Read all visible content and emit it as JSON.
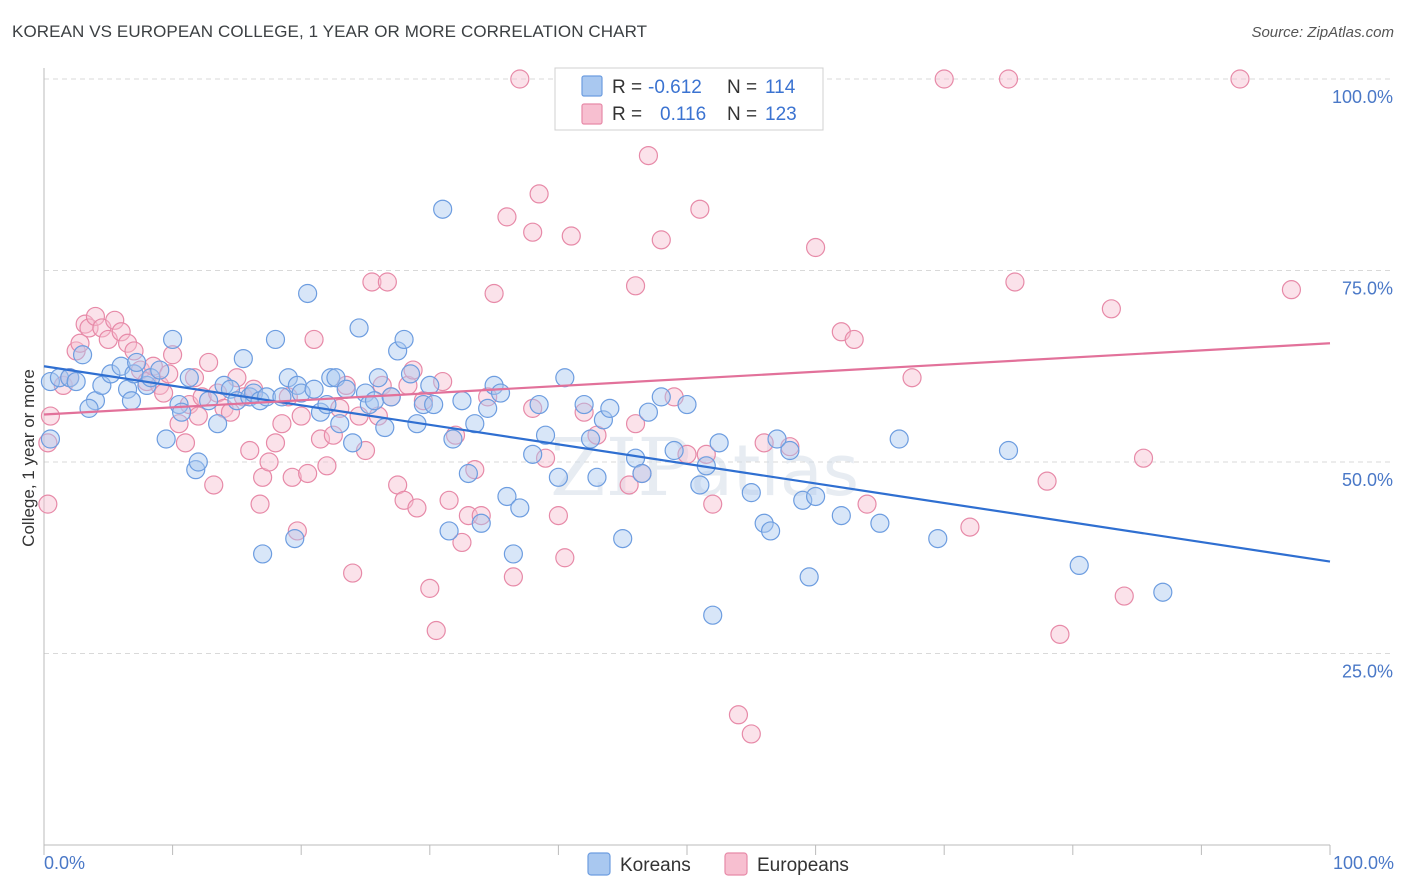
{
  "title": "KOREAN VS EUROPEAN COLLEGE, 1 YEAR OR MORE CORRELATION CHART",
  "source": "Source: ZipAtlas.com",
  "watermark": {
    "zip": "ZIP",
    "atlas": "atlas"
  },
  "legend": {
    "r_label": "R =",
    "n_label": "N =",
    "koreans": {
      "r": "-0.612",
      "n": "114"
    },
    "europeans": {
      "r": "0.116",
      "n": "123"
    }
  },
  "bottom_legend": {
    "koreans": "Koreans",
    "europeans": "Europeans"
  },
  "colors": {
    "koreans_fill": "#a9c8f0",
    "koreans_stroke": "#6d9de0",
    "koreans_line": "#2f6fd1",
    "europeans_fill": "#f7bfd0",
    "europeans_stroke": "#e78aa8",
    "europeans_line": "#e2719a",
    "grid": "#d9d9d9",
    "axis_tick_text": "#4a78c7"
  },
  "chart_data": {
    "type": "scatter",
    "title": "KOREAN VS EUROPEAN COLLEGE, 1 YEAR OR MORE CORRELATION CHART",
    "xlabel": "",
    "ylabel": "College, 1 year or more",
    "xlim": [
      0,
      100
    ],
    "ylim": [
      0,
      105
    ],
    "x_tick_labels": [
      "0.0%",
      "100.0%"
    ],
    "y_ticks": [
      25,
      50,
      75,
      100
    ],
    "y_tick_labels": [
      "25.0%",
      "50.0%",
      "75.0%",
      "100.0%"
    ],
    "grid": true,
    "legend_position": "top-center",
    "series": [
      {
        "name": "Koreans",
        "trend": {
          "x": [
            0,
            100
          ],
          "y": [
            62.5,
            37.0
          ]
        },
        "points": [
          [
            0.5,
            60.5
          ],
          [
            0.5,
            53.0
          ],
          [
            1.2,
            61.0
          ],
          [
            2.0,
            61.0
          ],
          [
            3.0,
            64.0
          ],
          [
            4.0,
            58.0
          ],
          [
            4.5,
            60.0
          ],
          [
            5.2,
            61.5
          ],
          [
            6.0,
            62.5
          ],
          [
            6.5,
            59.5
          ],
          [
            7.0,
            61.5
          ],
          [
            7.2,
            63.0
          ],
          [
            8.0,
            60.0
          ],
          [
            8.3,
            61.0
          ],
          [
            9.0,
            62.0
          ],
          [
            9.5,
            53.0
          ],
          [
            10.0,
            66.0
          ],
          [
            10.5,
            57.5
          ],
          [
            10.7,
            56.5
          ],
          [
            11.3,
            61.0
          ],
          [
            11.8,
            49.0
          ],
          [
            12.0,
            50.0
          ],
          [
            12.8,
            58.0
          ],
          [
            13.5,
            55.0
          ],
          [
            14.0,
            60.0
          ],
          [
            14.5,
            59.5
          ],
          [
            15.0,
            58.0
          ],
          [
            15.5,
            63.5
          ],
          [
            16.0,
            58.5
          ],
          [
            16.3,
            59.0
          ],
          [
            16.8,
            58.0
          ],
          [
            17.0,
            38.0
          ],
          [
            17.3,
            58.5
          ],
          [
            18.0,
            66.0
          ],
          [
            18.5,
            58.5
          ],
          [
            19.0,
            61.0
          ],
          [
            19.5,
            40.0
          ],
          [
            19.7,
            60.0
          ],
          [
            20.0,
            59.0
          ],
          [
            20.5,
            72.0
          ],
          [
            21.0,
            59.5
          ],
          [
            21.5,
            56.5
          ],
          [
            22.0,
            57.5
          ],
          [
            22.3,
            61.0
          ],
          [
            22.7,
            61.0
          ],
          [
            23.0,
            55.0
          ],
          [
            23.5,
            59.5
          ],
          [
            24.0,
            52.5
          ],
          [
            24.5,
            67.5
          ],
          [
            25.0,
            59.0
          ],
          [
            25.3,
            57.5
          ],
          [
            25.7,
            58.0
          ],
          [
            26.0,
            61.0
          ],
          [
            26.5,
            54.5
          ],
          [
            27.0,
            58.5
          ],
          [
            27.5,
            64.5
          ],
          [
            28.0,
            66.0
          ],
          [
            28.5,
            61.5
          ],
          [
            29.0,
            55.0
          ],
          [
            29.5,
            57.5
          ],
          [
            30.0,
            60.0
          ],
          [
            30.3,
            57.5
          ],
          [
            31.0,
            83.0
          ],
          [
            31.5,
            41.0
          ],
          [
            31.8,
            53.0
          ],
          [
            32.5,
            58.0
          ],
          [
            33.0,
            48.5
          ],
          [
            33.5,
            55.0
          ],
          [
            34.0,
            42.0
          ],
          [
            34.5,
            57.0
          ],
          [
            35.0,
            60.0
          ],
          [
            35.5,
            59.0
          ],
          [
            36.0,
            45.5
          ],
          [
            36.5,
            38.0
          ],
          [
            37.0,
            44.0
          ],
          [
            38.0,
            51.0
          ],
          [
            38.5,
            57.5
          ],
          [
            39.0,
            53.5
          ],
          [
            40.0,
            48.0
          ],
          [
            40.5,
            61.0
          ],
          [
            42.0,
            57.5
          ],
          [
            42.5,
            53.0
          ],
          [
            43.0,
            48.0
          ],
          [
            43.5,
            55.5
          ],
          [
            44.0,
            57.0
          ],
          [
            45.0,
            40.0
          ],
          [
            46.0,
            50.5
          ],
          [
            46.5,
            48.5
          ],
          [
            47.0,
            56.5
          ],
          [
            48.0,
            58.5
          ],
          [
            49.0,
            51.5
          ],
          [
            50.0,
            57.5
          ],
          [
            51.0,
            47.0
          ],
          [
            51.5,
            49.5
          ],
          [
            52.0,
            30.0
          ],
          [
            52.5,
            52.5
          ],
          [
            55.0,
            46.0
          ],
          [
            56.0,
            42.0
          ],
          [
            56.5,
            41.0
          ],
          [
            57.0,
            53.0
          ],
          [
            58.0,
            51.5
          ],
          [
            59.0,
            45.0
          ],
          [
            59.5,
            35.0
          ],
          [
            60.0,
            45.5
          ],
          [
            62.0,
            43.0
          ],
          [
            65.0,
            42.0
          ],
          [
            66.5,
            53.0
          ],
          [
            69.5,
            40.0
          ],
          [
            75.0,
            51.5
          ],
          [
            80.5,
            36.5
          ],
          [
            87.0,
            33.0
          ],
          [
            2.5,
            60.5
          ],
          [
            6.8,
            58.0
          ],
          [
            3.5,
            57.0
          ]
        ]
      },
      {
        "name": "Europeans",
        "trend": {
          "x": [
            0,
            100
          ],
          "y": [
            56.2,
            65.5
          ]
        },
        "points": [
          [
            0.3,
            52.5
          ],
          [
            0.3,
            44.5
          ],
          [
            0.5,
            56.0
          ],
          [
            1.5,
            60.0
          ],
          [
            2.0,
            61.0
          ],
          [
            2.5,
            64.5
          ],
          [
            2.8,
            65.5
          ],
          [
            3.2,
            68.0
          ],
          [
            3.5,
            67.5
          ],
          [
            4.0,
            69.0
          ],
          [
            4.5,
            67.5
          ],
          [
            5.0,
            66.0
          ],
          [
            5.5,
            68.5
          ],
          [
            6.0,
            67.0
          ],
          [
            6.5,
            65.5
          ],
          [
            7.0,
            64.5
          ],
          [
            7.5,
            62.0
          ],
          [
            8.0,
            60.5
          ],
          [
            8.5,
            62.5
          ],
          [
            9.0,
            60.0
          ],
          [
            9.3,
            59.0
          ],
          [
            9.7,
            61.5
          ],
          [
            10.0,
            64.0
          ],
          [
            10.5,
            55.0
          ],
          [
            11.0,
            52.5
          ],
          [
            11.3,
            57.5
          ],
          [
            11.7,
            61.0
          ],
          [
            12.0,
            56.0
          ],
          [
            12.3,
            58.5
          ],
          [
            12.8,
            63.0
          ],
          [
            13.2,
            47.0
          ],
          [
            13.5,
            59.0
          ],
          [
            14.0,
            57.0
          ],
          [
            14.5,
            56.5
          ],
          [
            15.0,
            61.0
          ],
          [
            15.5,
            58.5
          ],
          [
            16.0,
            51.5
          ],
          [
            16.3,
            59.5
          ],
          [
            16.8,
            44.5
          ],
          [
            17.0,
            48.0
          ],
          [
            17.5,
            50.0
          ],
          [
            18.0,
            52.5
          ],
          [
            18.5,
            55.0
          ],
          [
            19.0,
            58.5
          ],
          [
            19.3,
            48.0
          ],
          [
            19.7,
            41.0
          ],
          [
            20.0,
            56.0
          ],
          [
            20.5,
            48.5
          ],
          [
            21.0,
            66.0
          ],
          [
            21.5,
            53.0
          ],
          [
            22.0,
            49.5
          ],
          [
            22.5,
            53.5
          ],
          [
            23.0,
            57.0
          ],
          [
            23.5,
            60.0
          ],
          [
            24.0,
            35.5
          ],
          [
            24.5,
            56.0
          ],
          [
            25.0,
            51.5
          ],
          [
            25.5,
            73.5
          ],
          [
            26.0,
            56.0
          ],
          [
            26.3,
            60.0
          ],
          [
            26.7,
            73.5
          ],
          [
            27.0,
            58.5
          ],
          [
            27.5,
            47.0
          ],
          [
            28.0,
            45.0
          ],
          [
            28.3,
            60.0
          ],
          [
            28.7,
            62.0
          ],
          [
            29.0,
            44.0
          ],
          [
            29.5,
            58.0
          ],
          [
            30.0,
            33.5
          ],
          [
            30.5,
            28.0
          ],
          [
            31.0,
            60.5
          ],
          [
            31.5,
            45.0
          ],
          [
            32.0,
            53.5
          ],
          [
            32.5,
            39.5
          ],
          [
            33.0,
            43.0
          ],
          [
            33.5,
            49.0
          ],
          [
            34.0,
            43.0
          ],
          [
            34.5,
            58.5
          ],
          [
            35.0,
            72.0
          ],
          [
            36.0,
            82.0
          ],
          [
            36.5,
            35.0
          ],
          [
            37.0,
            100.0
          ],
          [
            38.0,
            80.0
          ],
          [
            38.5,
            85.0
          ],
          [
            39.0,
            50.5
          ],
          [
            40.0,
            43.0
          ],
          [
            40.5,
            37.5
          ],
          [
            41.0,
            79.5
          ],
          [
            42.0,
            56.5
          ],
          [
            43.0,
            53.5
          ],
          [
            45.0,
            100.0
          ],
          [
            45.5,
            47.0
          ],
          [
            46.0,
            73.0
          ],
          [
            46.5,
            48.5
          ],
          [
            47.0,
            90.0
          ],
          [
            48.0,
            79.0
          ],
          [
            49.0,
            58.5
          ],
          [
            50.0,
            51.0
          ],
          [
            51.0,
            83.0
          ],
          [
            51.5,
            51.0
          ],
          [
            52.0,
            44.5
          ],
          [
            54.0,
            17.0
          ],
          [
            55.0,
            14.5
          ],
          [
            56.0,
            52.5
          ],
          [
            58.0,
            52.0
          ],
          [
            60.0,
            78.0
          ],
          [
            62.0,
            67.0
          ],
          [
            63.0,
            66.0
          ],
          [
            64.0,
            44.5
          ],
          [
            67.5,
            61.0
          ],
          [
            70.0,
            100.0
          ],
          [
            72.0,
            41.5
          ],
          [
            75.0,
            100.0
          ],
          [
            75.5,
            73.5
          ],
          [
            78.0,
            47.5
          ],
          [
            79.0,
            27.5
          ],
          [
            83.0,
            70.0
          ],
          [
            84.0,
            32.5
          ],
          [
            85.5,
            50.5
          ],
          [
            93.0,
            100.0
          ],
          [
            97.0,
            72.5
          ],
          [
            38.0,
            57.0
          ],
          [
            46.0,
            55.0
          ]
        ]
      }
    ]
  }
}
